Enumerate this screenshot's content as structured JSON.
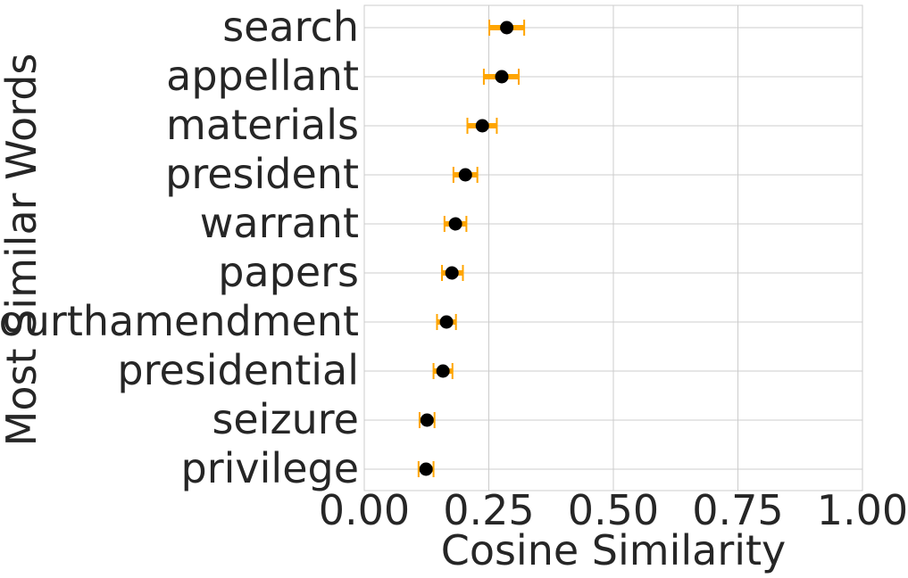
{
  "chart_data": {
    "type": "scatter",
    "xlabel": "Cosine Similarity",
    "ylabel": "Most Similar Words",
    "xlim": [
      0.0,
      1.0
    ],
    "xticks": [
      "0.00",
      "0.25",
      "0.50",
      "0.75",
      "1.00"
    ],
    "grid": true,
    "point_color": "#000000",
    "errorbar_color": "#FFA500",
    "categories": [
      "search",
      "appellant",
      "materials",
      "president",
      "warrant",
      "papers",
      "fourthamendment",
      "presidential",
      "seizure",
      "privilege"
    ],
    "values": [
      0.286,
      0.276,
      0.237,
      0.203,
      0.183,
      0.176,
      0.165,
      0.158,
      0.126,
      0.124
    ],
    "lower": [
      0.251,
      0.24,
      0.207,
      0.179,
      0.161,
      0.156,
      0.146,
      0.139,
      0.111,
      0.109
    ],
    "upper": [
      0.321,
      0.31,
      0.266,
      0.227,
      0.205,
      0.198,
      0.184,
      0.177,
      0.141,
      0.139
    ]
  }
}
